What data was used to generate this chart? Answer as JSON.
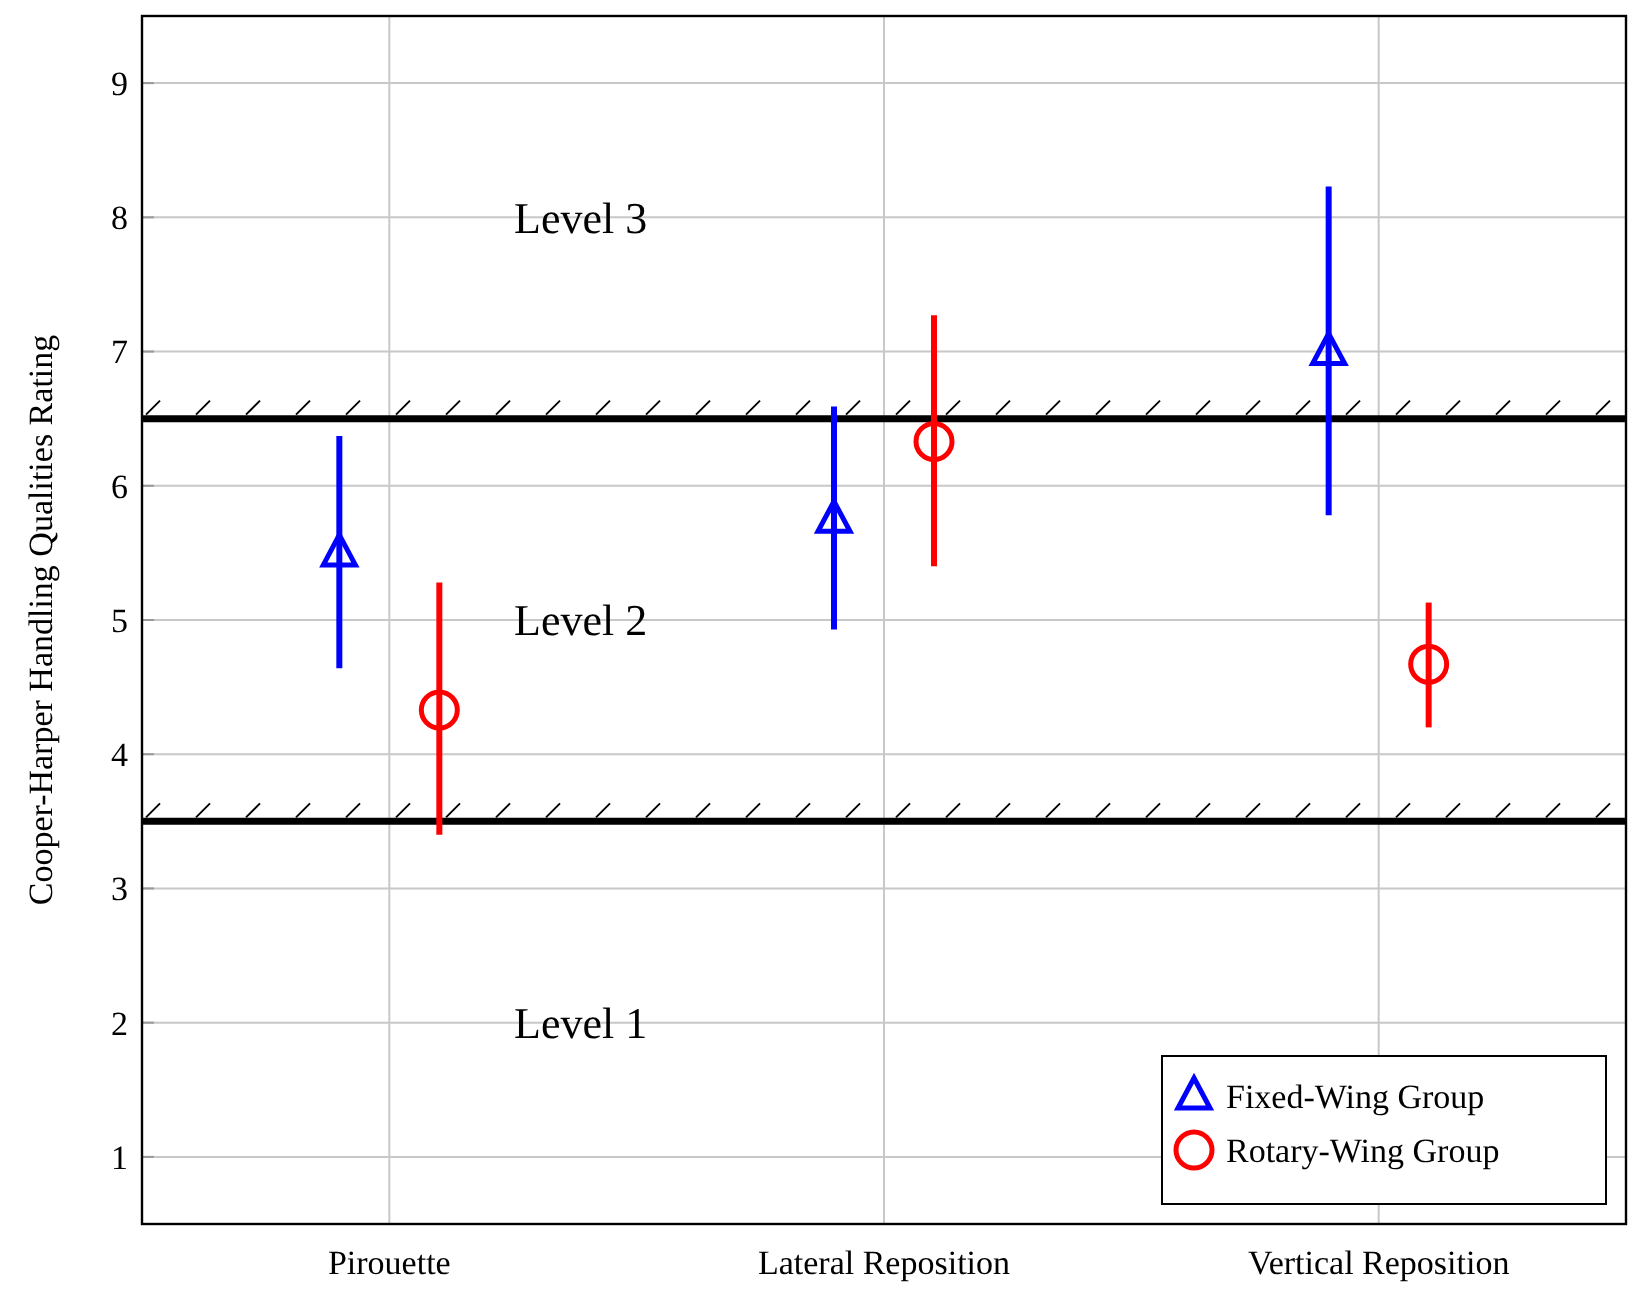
{
  "chart_data": {
    "type": "scatter",
    "ylabel": "Cooper-Harper Handling Qualities Rating",
    "categories": [
      "Pirouette",
      "Lateral Reposition",
      "Vertical Reposition"
    ],
    "ylim": [
      0.5,
      9.5
    ],
    "yticks": [
      1,
      2,
      3,
      4,
      5,
      6,
      7,
      8,
      9
    ],
    "grid": true,
    "legend": "bottom right",
    "series": [
      {
        "name": "Fixed-Wing Group",
        "color": "#0000ff",
        "marker": "triangle",
        "values": [
          5.5,
          5.75,
          7.0
        ],
        "errors": [
          [
            4.64,
            6.37
          ],
          [
            4.93,
            6.59
          ],
          [
            5.78,
            8.23
          ]
        ]
      },
      {
        "name": "Rotary-Wing Group",
        "color": "#ff0000",
        "marker": "circle",
        "values": [
          4.33,
          6.33,
          4.67
        ],
        "errors": [
          [
            3.4,
            5.28
          ],
          [
            5.4,
            7.27
          ],
          [
            4.2,
            5.13
          ]
        ]
      }
    ],
    "ref_lines": [
      {
        "axis": "y",
        "value": 3.5,
        "color": "#000000"
      },
      {
        "axis": "y",
        "value": 6.5,
        "color": "#000000"
      }
    ],
    "annotations": [
      "Level 3",
      "Level 2",
      "Level 1"
    ]
  }
}
